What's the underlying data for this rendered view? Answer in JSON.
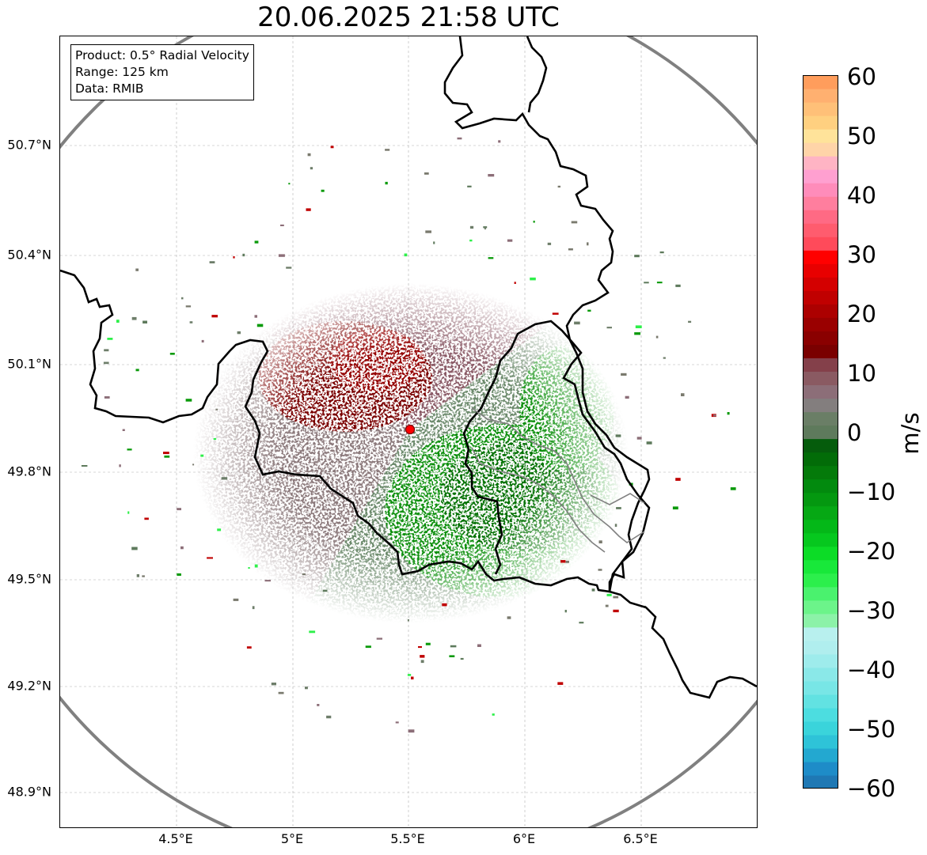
{
  "title": "20.06.2025 21:58 UTC",
  "info": {
    "product": "Product: 0.5° Radial Velocity",
    "range": "Range: 125 km",
    "data": "Data: RMIB"
  },
  "lat_labels": [
    "50.7°N",
    "50.4°N",
    "50.1°N",
    "49.8°N",
    "49.5°N",
    "49.2°N",
    "48.9°N"
  ],
  "lon_labels": [
    "4.5°E",
    "5°E",
    "5.5°E",
    "6°E",
    "6.5°E"
  ],
  "extent": {
    "lon_min": 4.0,
    "lon_max": 7.0,
    "lat_min": 48.8,
    "lat_max": 50.99
  },
  "radar_site": {
    "lon": 5.505,
    "lat": 49.914
  },
  "range_ring_km": 125,
  "colorbar": {
    "unit": "m/s",
    "ticks": [
      "60",
      "50",
      "40",
      "30",
      "20",
      "10",
      "0",
      "−10",
      "−20",
      "−30",
      "−40",
      "−50",
      "−60"
    ],
    "vmin": -60,
    "vmax": 60,
    "colors": [
      "#1f78b4",
      "#1e8cc8",
      "#23a8d0",
      "#2ec3d8",
      "#3ad4db",
      "#4cdde0",
      "#62e2e2",
      "#78e6e6",
      "#8ae8e8",
      "#9eecec",
      "#b0eeee",
      "#b8f0ee",
      "#8cf2a8",
      "#6cf48a",
      "#4af26e",
      "#2cef4c",
      "#18e83a",
      "#0cdc26",
      "#06c81e",
      "#04b818",
      "#06a814",
      "#049810",
      "#028a0e",
      "#047a0a",
      "#026c08",
      "#055c0c",
      "#5e7a5c",
      "#6a7e66",
      "#837e7e",
      "#8c6e78",
      "#8a5a62",
      "#84404a",
      "#7a0000",
      "#8a0000",
      "#9a0000",
      "#ac0000",
      "#c00000",
      "#d40000",
      "#e80000",
      "#ff0000",
      "#ff4a5a",
      "#ff5c6e",
      "#ff6a84",
      "#ff7e9e",
      "#ff8cba",
      "#ffa0d0",
      "#ffb4c4",
      "#ffd4a8",
      "#ffe39a",
      "#ffd080",
      "#ffc078",
      "#ffb070",
      "#ff9d5c"
    ],
    "band_colors": {
      "inbound_strong": "#007000",
      "inbound": "#0a8f0a",
      "zero_green": "#6c8a6c",
      "zero_gray": "#8c7a7c",
      "outbound": "#8a5a66",
      "outbound_strong": "#7a0000"
    }
  },
  "colors": {
    "border": "#000000",
    "ring": "#808080",
    "grid": "#b0b0b0",
    "site_marker": "#ff0000",
    "admin_border": "#808080"
  }
}
